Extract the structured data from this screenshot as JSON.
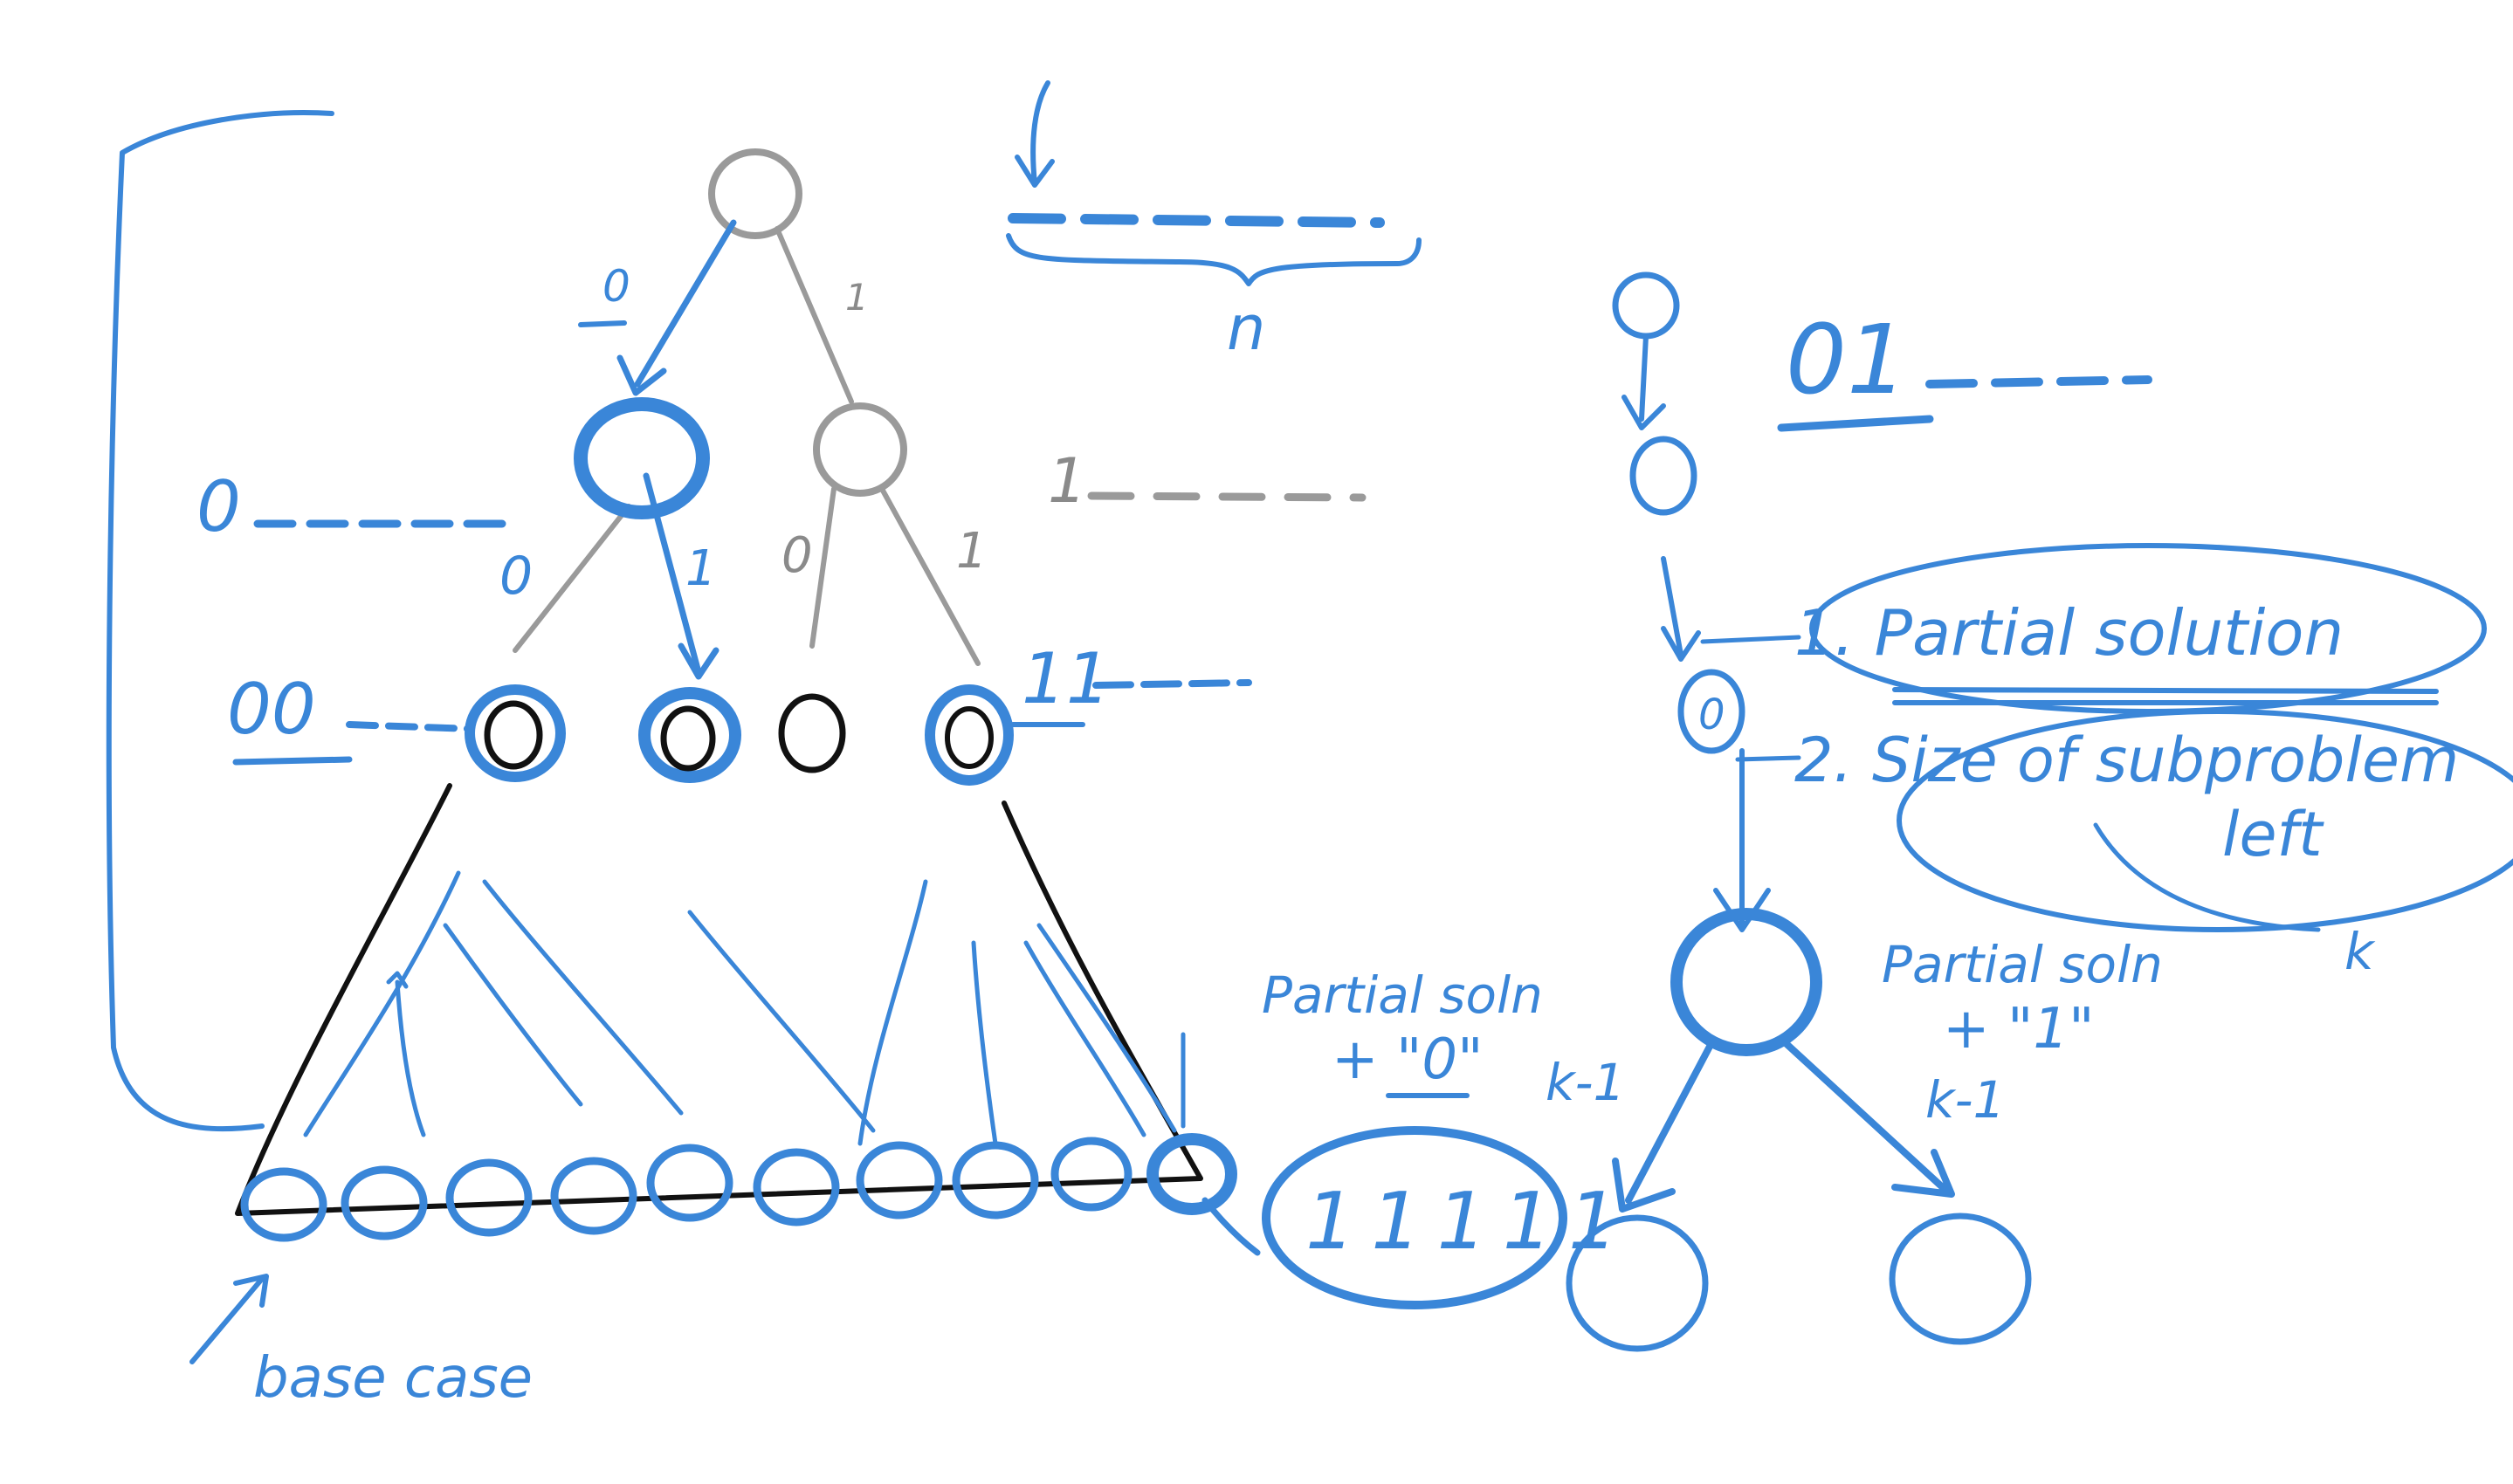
{
  "colors": {
    "ink_blue": "#3a86d8",
    "ink_dark": "#111111",
    "ink_gray": "#9a9a9a",
    "background": "#ffffff"
  },
  "tree": {
    "edge_left": "0",
    "edge_right": "1",
    "sub_left_0": "0",
    "sub_left_1": "1",
    "sub_right_0": "0",
    "sub_right_1": "1",
    "prefix_0": "0",
    "prefix_1": "1",
    "prefix_00": "00",
    "prefix_11": "11",
    "base_case": "base case"
  },
  "string_diagram": {
    "length_label": "n"
  },
  "right_side": {
    "prefix_01": "01",
    "item_1": "1. Partial solution",
    "item_2_line1": "2. Size of subproblem",
    "item_2_line2": "left",
    "k_label": "k",
    "partial_soln_0_line1": "Partial soln",
    "partial_soln_0_line2": "+ \"0\"",
    "partial_soln_1_line1": "Partial soln",
    "partial_soln_1_line2": "+ \"1\"",
    "k_minus_1_left": "k-1",
    "k_minus_1_right": "k-1",
    "leaf_bits": "11111",
    "small_node_label": "0"
  }
}
